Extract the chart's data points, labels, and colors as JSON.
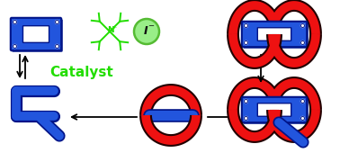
{
  "bg_color": "#ffffff",
  "blue": "#2255dd",
  "blue_dark": "#001488",
  "blue_mid": "#1133bb",
  "red": "#ee1111",
  "red_dark": "#220000",
  "green_mol": "#22dd00",
  "green_circle": "#99ee88",
  "green_circle_edge": "#55bb33",
  "black": "#111111",
  "catalyst_text": "Catalyst",
  "figsize": [
    3.78,
    1.8
  ],
  "dpi": 100
}
